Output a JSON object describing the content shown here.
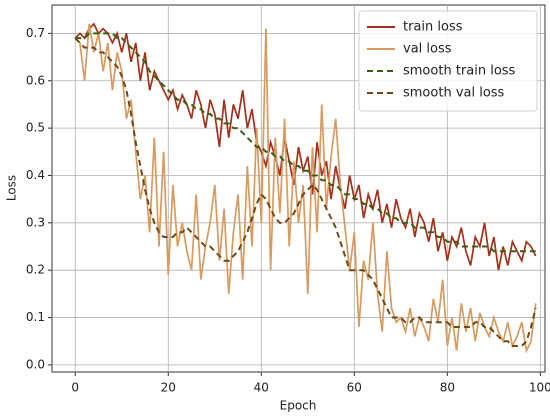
{
  "chart_data": {
    "type": "line",
    "xlabel": "Epoch",
    "ylabel": "Loss",
    "xlim": [
      -5,
      101
    ],
    "ylim": [
      -0.015,
      0.76
    ],
    "xticks": [
      0,
      20,
      40,
      60,
      80,
      100
    ],
    "yticks": [
      {
        "value": 0,
        "label": "0.0"
      },
      0.1,
      0.2,
      0.3,
      0.4,
      0.5,
      0.6,
      0.7
    ],
    "grid": true,
    "legend": "upper right",
    "x": [
      0,
      1,
      2,
      3,
      4,
      5,
      6,
      7,
      8,
      9,
      10,
      11,
      12,
      13,
      14,
      15,
      16,
      17,
      18,
      19,
      20,
      21,
      22,
      23,
      24,
      25,
      26,
      27,
      28,
      29,
      30,
      31,
      32,
      33,
      34,
      35,
      36,
      37,
      38,
      39,
      40,
      41,
      42,
      43,
      44,
      45,
      46,
      47,
      48,
      49,
      50,
      51,
      52,
      53,
      54,
      55,
      56,
      57,
      58,
      59,
      60,
      61,
      62,
      63,
      64,
      65,
      66,
      67,
      68,
      69,
      70,
      71,
      72,
      73,
      74,
      75,
      76,
      77,
      78,
      79,
      80,
      81,
      82,
      83,
      84,
      85,
      86,
      87,
      88,
      89,
      90,
      91,
      92,
      93,
      94,
      95,
      96,
      97,
      98,
      99
    ],
    "series": [
      {
        "name": "train loss",
        "color": "#a5301a",
        "linestyle": "solid",
        "values": [
          0.69,
          0.7,
          0.69,
          0.71,
          0.72,
          0.7,
          0.71,
          0.7,
          0.68,
          0.7,
          0.66,
          0.7,
          0.64,
          0.68,
          0.6,
          0.66,
          0.58,
          0.62,
          0.6,
          0.58,
          0.56,
          0.58,
          0.54,
          0.57,
          0.55,
          0.52,
          0.58,
          0.55,
          0.5,
          0.56,
          0.53,
          0.46,
          0.56,
          0.48,
          0.55,
          0.52,
          0.58,
          0.5,
          0.54,
          0.47,
          0.45,
          0.42,
          0.47,
          0.44,
          0.4,
          0.48,
          0.43,
          0.38,
          0.46,
          0.41,
          0.44,
          0.36,
          0.47,
          0.4,
          0.43,
          0.35,
          0.42,
          0.37,
          0.33,
          0.4,
          0.35,
          0.38,
          0.31,
          0.36,
          0.33,
          0.37,
          0.3,
          0.34,
          0.29,
          0.35,
          0.31,
          0.29,
          0.33,
          0.27,
          0.32,
          0.3,
          0.26,
          0.31,
          0.24,
          0.28,
          0.22,
          0.27,
          0.25,
          0.29,
          0.24,
          0.21,
          0.27,
          0.25,
          0.3,
          0.23,
          0.27,
          0.2,
          0.25,
          0.21,
          0.26,
          0.24,
          0.22,
          0.26,
          0.25,
          0.23
        ]
      },
      {
        "name": "val loss",
        "color": "#d89a60",
        "linestyle": "solid",
        "values": [
          0.69,
          0.68,
          0.6,
          0.72,
          0.66,
          0.7,
          0.62,
          0.68,
          0.58,
          0.66,
          0.62,
          0.52,
          0.56,
          0.45,
          0.35,
          0.4,
          0.28,
          0.48,
          0.25,
          0.45,
          0.19,
          0.38,
          0.25,
          0.3,
          0.24,
          0.2,
          0.36,
          0.18,
          0.25,
          0.3,
          0.38,
          0.22,
          0.33,
          0.15,
          0.28,
          0.36,
          0.18,
          0.42,
          0.25,
          0.5,
          0.3,
          0.71,
          0.2,
          0.48,
          0.32,
          0.52,
          0.25,
          0.43,
          0.3,
          0.38,
          0.15,
          0.46,
          0.28,
          0.55,
          0.33,
          0.44,
          0.52,
          0.38,
          0.29,
          0.2,
          0.28,
          0.08,
          0.22,
          0.18,
          0.3,
          0.15,
          0.07,
          0.24,
          0.12,
          0.09,
          0.1,
          0.07,
          0.12,
          0.06,
          0.1,
          0.08,
          0.05,
          0.14,
          0.09,
          0.18,
          0.04,
          0.1,
          0.03,
          0.13,
          0.07,
          0.12,
          0.05,
          0.11,
          0.08,
          0.06,
          0.1,
          0.07,
          0.05,
          0.09,
          0.04,
          0.06,
          0.09,
          0.03,
          0.05,
          0.13
        ]
      },
      {
        "name": "smooth train loss",
        "color": "#3b5e12",
        "linestyle": "dashed",
        "values": [
          0.69,
          0.69,
          0.69,
          0.7,
          0.7,
          0.7,
          0.7,
          0.7,
          0.7,
          0.69,
          0.69,
          0.68,
          0.67,
          0.66,
          0.65,
          0.64,
          0.62,
          0.61,
          0.6,
          0.59,
          0.58,
          0.57,
          0.56,
          0.56,
          0.55,
          0.55,
          0.54,
          0.54,
          0.53,
          0.53,
          0.52,
          0.52,
          0.51,
          0.51,
          0.5,
          0.5,
          0.49,
          0.48,
          0.47,
          0.46,
          0.46,
          0.45,
          0.45,
          0.44,
          0.44,
          0.43,
          0.43,
          0.42,
          0.42,
          0.41,
          0.41,
          0.4,
          0.4,
          0.39,
          0.39,
          0.38,
          0.38,
          0.37,
          0.36,
          0.36,
          0.35,
          0.35,
          0.34,
          0.34,
          0.33,
          0.33,
          0.32,
          0.32,
          0.31,
          0.31,
          0.3,
          0.3,
          0.3,
          0.29,
          0.29,
          0.29,
          0.28,
          0.28,
          0.27,
          0.27,
          0.26,
          0.26,
          0.26,
          0.25,
          0.25,
          0.25,
          0.25,
          0.25,
          0.25,
          0.25,
          0.24,
          0.24,
          0.24,
          0.24,
          0.24,
          0.24,
          0.24,
          0.24,
          0.24,
          0.24
        ]
      },
      {
        "name": "smooth val loss",
        "color": "#6e4a14",
        "linestyle": "dashed",
        "values": [
          0.69,
          0.68,
          0.67,
          0.67,
          0.67,
          0.66,
          0.66,
          0.65,
          0.64,
          0.63,
          0.61,
          0.58,
          0.53,
          0.47,
          0.42,
          0.37,
          0.33,
          0.3,
          0.28,
          0.27,
          0.27,
          0.27,
          0.28,
          0.28,
          0.29,
          0.28,
          0.27,
          0.26,
          0.25,
          0.25,
          0.24,
          0.23,
          0.22,
          0.22,
          0.23,
          0.24,
          0.26,
          0.28,
          0.31,
          0.34,
          0.36,
          0.35,
          0.33,
          0.31,
          0.3,
          0.3,
          0.31,
          0.32,
          0.34,
          0.36,
          0.37,
          0.38,
          0.37,
          0.35,
          0.33,
          0.31,
          0.29,
          0.26,
          0.23,
          0.2,
          0.2,
          0.2,
          0.2,
          0.19,
          0.18,
          0.16,
          0.14,
          0.12,
          0.1,
          0.1,
          0.1,
          0.09,
          0.09,
          0.1,
          0.1,
          0.09,
          0.09,
          0.09,
          0.09,
          0.09,
          0.09,
          0.08,
          0.08,
          0.08,
          0.08,
          0.08,
          0.09,
          0.09,
          0.08,
          0.08,
          0.07,
          0.06,
          0.05,
          0.05,
          0.04,
          0.04,
          0.04,
          0.05,
          0.08,
          0.12
        ]
      }
    ]
  }
}
